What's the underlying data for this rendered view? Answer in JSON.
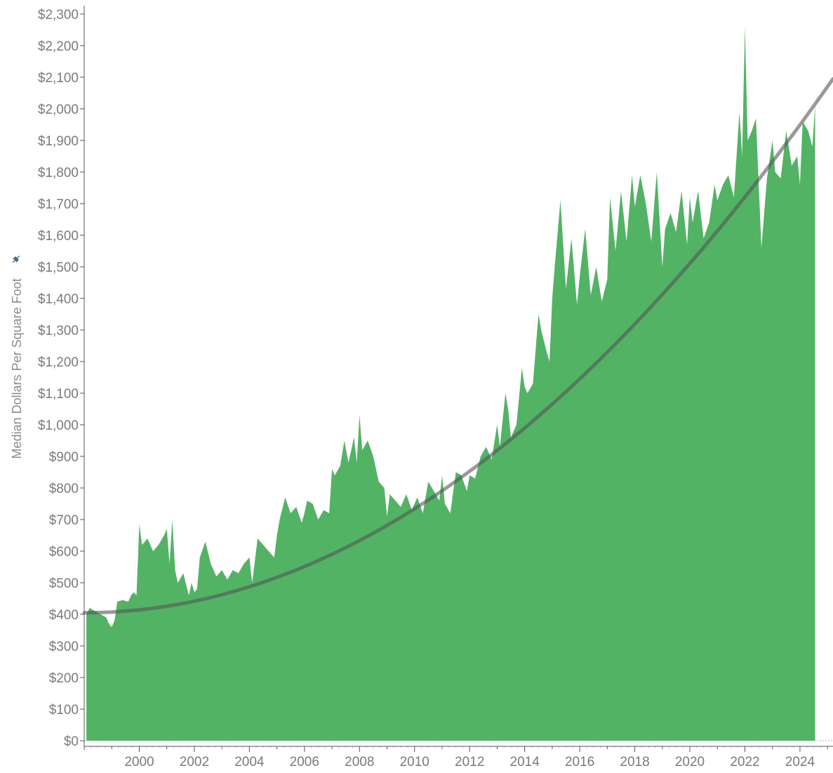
{
  "chart_data": {
    "type": "area",
    "title": "",
    "xlabel": "",
    "ylabel": "Median Dollars Per Square Foot",
    "ylabel_icon": "pin-icon",
    "xlim": [
      1998.0,
      2025.2
    ],
    "ylim": [
      0,
      2300
    ],
    "x_ticks": [
      "2000",
      "2002",
      "2004",
      "2006",
      "2008",
      "2010",
      "2012",
      "2014",
      "2016",
      "2018",
      "2020",
      "2022",
      "2024"
    ],
    "y_ticks": [
      "$0",
      "$100",
      "$200",
      "$300",
      "$400",
      "$500",
      "$600",
      "$700",
      "$800",
      "$900",
      "$1,000",
      "$1,100",
      "$1,200",
      "$1,300",
      "$1,400",
      "$1,500",
      "$1,600",
      "$1,700",
      "$1,800",
      "$1,900",
      "$2,000",
      "$2,100",
      "$2,200",
      "$2,300"
    ],
    "grid": false,
    "colors": {
      "area": "#52b365",
      "trend": "#555555",
      "axis": "#555555",
      "text": "#7a7a7a"
    },
    "series": [
      {
        "x": [
          1998.08,
          1998.2,
          1998.4,
          1998.6,
          1998.8,
          1998.9,
          1999.0,
          1999.1,
          1999.2,
          1999.4,
          1999.6,
          1999.7,
          1999.8,
          1999.9,
          2000.0,
          2000.1,
          2000.3,
          2000.5,
          2000.7,
          2000.9,
          2001.0,
          2001.1,
          2001.2,
          2001.3,
          2001.4,
          2001.6,
          2001.8,
          2001.9,
          2002.0,
          2002.1,
          2002.2,
          2002.4,
          2002.6,
          2002.8,
          2003.0,
          2003.2,
          2003.4,
          2003.6,
          2003.8,
          2003.9,
          2004.0,
          2004.1,
          2004.3,
          2004.5,
          2004.7,
          2004.9,
          2005.0,
          2005.1,
          2005.3,
          2005.5,
          2005.7,
          2005.9,
          2006.0,
          2006.1,
          2006.3,
          2006.5,
          2006.7,
          2006.9,
          2007.0,
          2007.1,
          2007.3,
          2007.45,
          2007.6,
          2007.8,
          2007.9,
          2008.0,
          2008.1,
          2008.3,
          2008.5,
          2008.7,
          2008.9,
          2009.0,
          2009.1,
          2009.3,
          2009.5,
          2009.7,
          2009.9,
          2010.0,
          2010.1,
          2010.3,
          2010.5,
          2010.7,
          2010.9,
          2011.0,
          2011.1,
          2011.3,
          2011.5,
          2011.7,
          2011.9,
          2012.0,
          2012.2,
          2012.4,
          2012.6,
          2012.8,
          2013.0,
          2013.1,
          2013.3,
          2013.4,
          2013.5,
          2013.7,
          2013.9,
          2014.0,
          2014.1,
          2014.3,
          2014.5,
          2014.6,
          2014.8,
          2014.9,
          2015.0,
          2015.1,
          2015.3,
          2015.5,
          2015.7,
          2015.9,
          2016.0,
          2016.2,
          2016.4,
          2016.6,
          2016.8,
          2017.0,
          2017.1,
          2017.3,
          2017.5,
          2017.7,
          2017.9,
          2018.0,
          2018.2,
          2018.4,
          2018.6,
          2018.8,
          2019.0,
          2019.1,
          2019.3,
          2019.5,
          2019.7,
          2019.9,
          2020.0,
          2020.1,
          2020.3,
          2020.5,
          2020.7,
          2020.9,
          2021.0,
          2021.2,
          2021.4,
          2021.6,
          2021.8,
          2021.9,
          2022.0,
          2022.1,
          2022.25,
          2022.4,
          2022.6,
          2022.8,
          2023.0,
          2023.1,
          2023.3,
          2023.5,
          2023.7,
          2023.9,
          2024.0,
          2024.1,
          2024.3,
          2024.45,
          2024.55
        ],
        "values": [
          400,
          420,
          410,
          400,
          390,
          370,
          360,
          380,
          440,
          445,
          440,
          460,
          470,
          460,
          685,
          620,
          640,
          600,
          620,
          650,
          670,
          560,
          700,
          540,
          500,
          530,
          460,
          500,
          470,
          480,
          580,
          630,
          560,
          520,
          540,
          510,
          540,
          530,
          560,
          570,
          580,
          500,
          640,
          620,
          600,
          580,
          650,
          700,
          770,
          720,
          740,
          690,
          720,
          760,
          750,
          700,
          730,
          720,
          860,
          840,
          870,
          950,
          880,
          960,
          880,
          1030,
          920,
          950,
          900,
          820,
          800,
          710,
          780,
          760,
          740,
          780,
          730,
          750,
          770,
          720,
          820,
          790,
          760,
          840,
          750,
          720,
          850,
          840,
          790,
          840,
          830,
          900,
          930,
          890,
          1000,
          930,
          1100,
          1050,
          960,
          1000,
          1180,
          1120,
          1100,
          1130,
          1350,
          1300,
          1230,
          1200,
          1400,
          1510,
          1710,
          1430,
          1590,
          1380,
          1470,
          1620,
          1410,
          1500,
          1390,
          1460,
          1720,
          1550,
          1740,
          1580,
          1790,
          1690,
          1790,
          1700,
          1580,
          1800,
          1500,
          1620,
          1670,
          1610,
          1740,
          1570,
          1720,
          1640,
          1740,
          1590,
          1640,
          1760,
          1710,
          1760,
          1790,
          1720,
          1990,
          1850,
          2260,
          1900,
          1930,
          1970,
          1560,
          1780,
          1900,
          1800,
          1780,
          1930,
          1820,
          1850,
          1760,
          1960,
          1930,
          1880,
          2010
        ]
      }
    ],
    "trend": {
      "x": [
        1998.0,
        2025.2
      ],
      "y_start": 405,
      "y_end": 2095,
      "shape": "quadratic"
    }
  }
}
